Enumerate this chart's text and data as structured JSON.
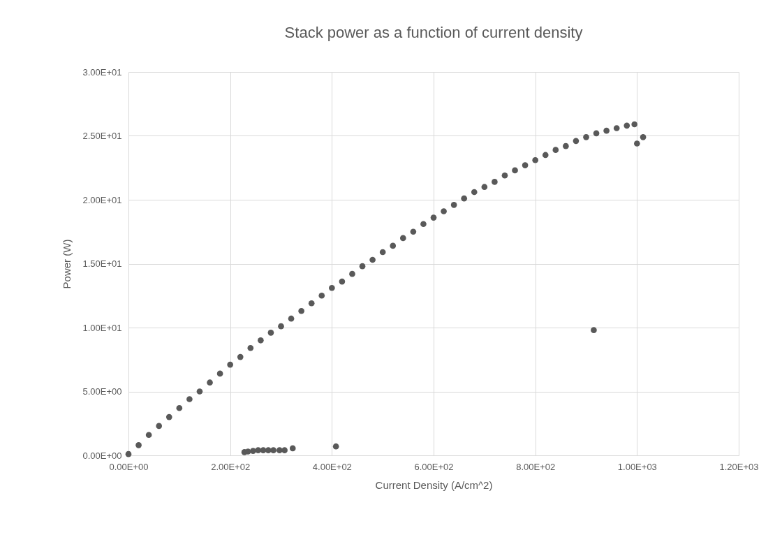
{
  "chart_data": {
    "type": "scatter",
    "title": "Stack power as a function of current density",
    "xlabel": "Current Density (A/cm^2)",
    "ylabel": "Power (W)",
    "x": [
      0,
      20,
      40,
      60,
      80,
      100,
      120,
      140,
      160,
      180,
      200,
      220,
      240,
      260,
      280,
      300,
      320,
      340,
      360,
      380,
      400,
      420,
      440,
      460,
      480,
      500,
      520,
      540,
      560,
      580,
      600,
      620,
      640,
      660,
      680,
      700,
      720,
      740,
      760,
      780,
      800,
      820,
      840,
      860,
      880,
      900,
      920,
      940,
      960,
      980,
      995,
      228,
      235,
      245,
      255,
      265,
      275,
      285,
      297,
      307,
      323,
      408,
      915,
      1000,
      1012
    ],
    "series": [
      {
        "color": "#595959",
        "values": [
          0.1,
          0.8,
          1.6,
          2.3,
          3.0,
          3.7,
          4.4,
          5.0,
          5.7,
          6.4,
          7.1,
          7.7,
          8.4,
          9.0,
          9.6,
          10.1,
          10.7,
          11.3,
          11.9,
          12.5,
          13.1,
          13.6,
          14.2,
          14.8,
          15.3,
          15.9,
          16.4,
          17.0,
          17.5,
          18.1,
          18.6,
          19.1,
          19.6,
          20.1,
          20.6,
          21.0,
          21.4,
          21.9,
          22.3,
          22.7,
          23.1,
          23.5,
          23.9,
          24.2,
          24.6,
          24.9,
          25.2,
          25.4,
          25.6,
          25.8,
          25.9,
          0.25,
          0.3,
          0.35,
          0.4,
          0.4,
          0.4,
          0.4,
          0.4,
          0.4,
          0.55,
          0.7,
          9.8,
          24.4,
          24.9
        ]
      }
    ],
    "xlim": [
      0,
      1200
    ],
    "xticks": [
      {
        "value": 0,
        "label": "0.00E+00"
      },
      {
        "value": 200,
        "label": "2.00E+02"
      },
      {
        "value": 400,
        "label": "4.00E+02"
      },
      {
        "value": 600,
        "label": "6.00E+02"
      },
      {
        "value": 800,
        "label": "8.00E+02"
      },
      {
        "value": 1000,
        "label": "1.00E+03"
      },
      {
        "value": 1200,
        "label": "1.20E+03"
      }
    ],
    "ylim": [
      0,
      30
    ],
    "yticks": [
      {
        "value": 0,
        "label": "0.00E+00"
      },
      {
        "value": 5,
        "label": "5.00E+00"
      },
      {
        "value": 10,
        "label": "1.00E+01"
      },
      {
        "value": 15,
        "label": "1.50E+01"
      },
      {
        "value": 20,
        "label": "2.00E+01"
      },
      {
        "value": 25,
        "label": "2.50E+01"
      },
      {
        "value": 30,
        "label": "3.00E+01"
      }
    ],
    "grid": true,
    "marker": "circle"
  }
}
